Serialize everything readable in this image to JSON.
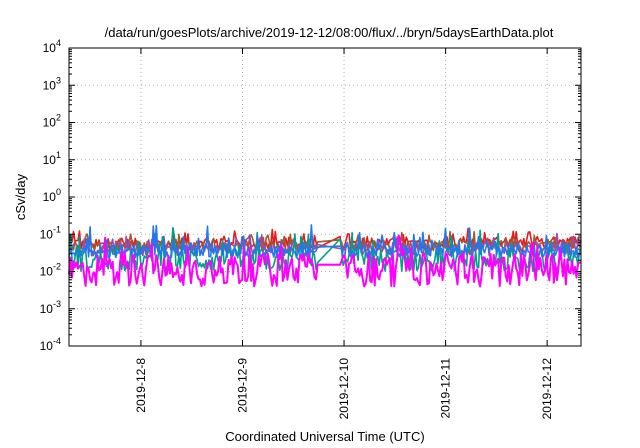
{
  "chart_data": {
    "type": "line",
    "title": "/data/run/goesPlots/archive/2019-12-12/08:00/flux/../bryn/5daysEarthData.plot",
    "xlabel": "Coordinated Universal Time (UTC)",
    "ylabel": "cSv/day",
    "y_scale": "log",
    "ylim": [
      0.0001,
      10000
    ],
    "y_ticks": [
      {
        "value": 0.0001,
        "base": "10",
        "exp": "-4"
      },
      {
        "value": 0.001,
        "base": "10",
        "exp": "-3"
      },
      {
        "value": 0.01,
        "base": "10",
        "exp": "-2"
      },
      {
        "value": 0.1,
        "base": "10",
        "exp": "-1"
      },
      {
        "value": 1,
        "base": "10",
        "exp": "0"
      },
      {
        "value": 10,
        "base": "10",
        "exp": "1"
      },
      {
        "value": 100,
        "base": "10",
        "exp": "2"
      },
      {
        "value": 1000,
        "base": "10",
        "exp": "3"
      },
      {
        "value": 10000,
        "base": "10",
        "exp": "4"
      }
    ],
    "xlim": [
      "2019-12-07 07:00",
      "2019-12-12 08:00"
    ],
    "x_ticks": [
      {
        "value": "2019-12-08 00:00",
        "label": "2019-12-8"
      },
      {
        "value": "2019-12-09 00:00",
        "label": "2019-12-9"
      },
      {
        "value": "2019-12-10 00:00",
        "label": "2019-12-10"
      },
      {
        "value": "2019-12-11 00:00",
        "label": "2019-12-11"
      },
      {
        "value": "2019-12-12 00:00",
        "label": "2019-12-12"
      }
    ],
    "grid": true,
    "legend": "none",
    "data_gap": [
      "2019-12-09 18:00",
      "2019-12-09 23:00"
    ],
    "series": [
      {
        "color": "#e41a1c",
        "mean": 0.055,
        "spread": 0.3
      },
      {
        "color": "#a65628",
        "mean": 0.048,
        "spread": 0.3
      },
      {
        "color": "#984ea3",
        "mean": 0.04,
        "spread": 0.35
      },
      {
        "color": "#00a087",
        "mean": 0.02,
        "spread": 0.6
      },
      {
        "color": "#1f78f0",
        "mean": 0.035,
        "spread": 0.35
      },
      {
        "color": "#ff00ff",
        "mean": 0.011,
        "spread": 0.9
      }
    ]
  }
}
